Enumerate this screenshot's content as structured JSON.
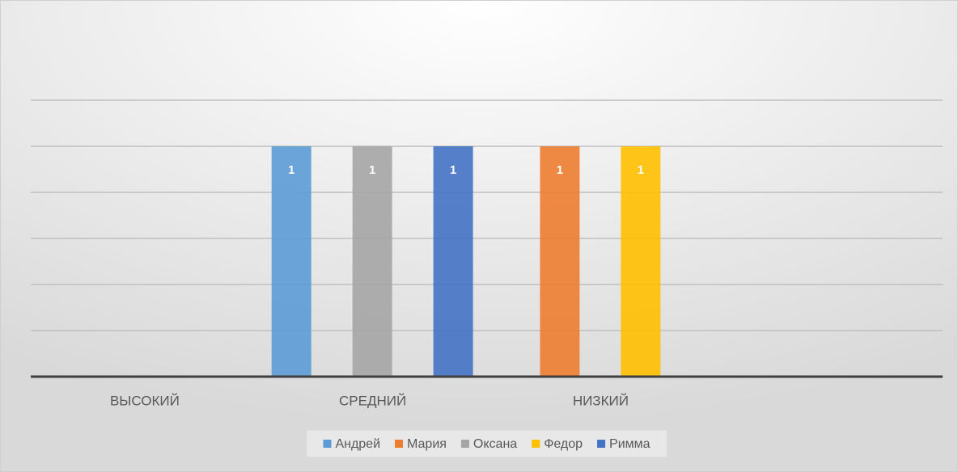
{
  "chart_data": {
    "type": "bar",
    "categories": [
      "ВЫСОКИЙ",
      "СРЕДНИЙ",
      "НИЗКИЙ",
      null
    ],
    "series": [
      {
        "name": "Андрей",
        "color": "#5b9bd5",
        "values": [
          null,
          1,
          null,
          null
        ]
      },
      {
        "name": "Мария",
        "color": "#ed7d31",
        "values": [
          null,
          null,
          1,
          null
        ]
      },
      {
        "name": "Оксана",
        "color": "#a5a5a5",
        "values": [
          null,
          1,
          null,
          null
        ]
      },
      {
        "name": "Федор",
        "color": "#ffc000",
        "values": [
          null,
          null,
          1,
          null
        ]
      },
      {
        "name": "Римма",
        "color": "#4472c4",
        "values": [
          null,
          1,
          null,
          null
        ]
      }
    ],
    "ylim": [
      0,
      1.2
    ],
    "yticks": [
      0,
      0.2,
      0.4,
      0.6,
      0.8,
      1,
      1.2
    ],
    "grid": true,
    "legend": "bottom"
  }
}
